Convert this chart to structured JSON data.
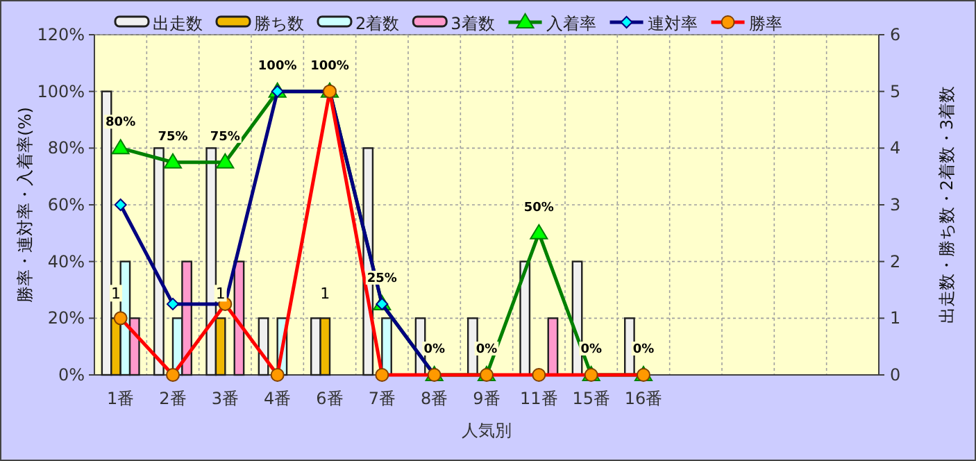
{
  "chart_data": {
    "type": "bar",
    "xlabel": "人気別",
    "ylabel": "勝率・連対率・入着率(%)",
    "y2label": "出走数・勝ち数・2着数・3着数",
    "categories": [
      "1番",
      "2番",
      "3番",
      "4番",
      "6番",
      "7番",
      "8番",
      "9番",
      "11番",
      "15番",
      "16番",
      null,
      null,
      null,
      null
    ],
    "series": [
      {
        "name": "出走数",
        "axis": "y2",
        "color": "#f0f0f0",
        "values": [
          5,
          4,
          4,
          1,
          1,
          4,
          1,
          1,
          2,
          2,
          1,
          null,
          null,
          null,
          null
        ]
      },
      {
        "name": "勝ち数",
        "axis": "y2",
        "color": "#f0b800",
        "values": [
          1,
          0,
          1,
          0,
          1,
          0,
          0,
          0,
          0,
          0,
          0,
          null,
          null,
          null,
          null
        ],
        "value_labels": [
          "1",
          null,
          "1",
          null,
          "1",
          null,
          null,
          null,
          null,
          null,
          null,
          null,
          null,
          null,
          null
        ]
      },
      {
        "name": "2着数",
        "axis": "y2",
        "color": "#ccffff",
        "values": [
          2,
          1,
          0,
          1,
          0,
          1,
          0,
          0,
          0,
          0,
          0,
          null,
          null,
          null,
          null
        ]
      },
      {
        "name": "3着数",
        "axis": "y2",
        "color": "#ff99cc",
        "values": [
          1,
          2,
          2,
          0,
          0,
          0,
          0,
          0,
          1,
          0,
          0,
          null,
          null,
          null,
          null
        ]
      },
      {
        "name": "入着率",
        "type": "line",
        "axis": "y",
        "color": "#008000",
        "marker": "triangle",
        "values": [
          80,
          75,
          75,
          100,
          100,
          25,
          0,
          0,
          50,
          0,
          0,
          null,
          null,
          null,
          null
        ],
        "value_labels": [
          "80%",
          "75%",
          "75%",
          "100%",
          "100%",
          "25%",
          "0%",
          "0%",
          "50%",
          "0%",
          "0%",
          null,
          null,
          null,
          null
        ]
      },
      {
        "name": "連対率",
        "type": "line",
        "axis": "y",
        "color": "#000080",
        "marker": "diamond",
        "values": [
          60,
          25,
          25,
          100,
          100,
          25,
          0,
          null,
          null,
          null,
          null,
          null,
          null,
          null,
          null
        ]
      },
      {
        "name": "勝率",
        "type": "line",
        "axis": "y",
        "color": "#ff0000",
        "marker": "circle",
        "values": [
          20,
          0,
          25,
          0,
          100,
          0,
          0,
          0,
          0,
          0,
          0,
          null,
          null,
          null,
          null
        ]
      }
    ],
    "ylim": [
      0,
      120
    ],
    "yticks": [
      {
        "value": 0,
        "label": "0%"
      },
      {
        "value": 20,
        "label": "20%"
      },
      {
        "value": 40,
        "label": "40%"
      },
      {
        "value": 60,
        "label": "60%"
      },
      {
        "value": 80,
        "label": "80%"
      },
      {
        "value": 100,
        "label": "100%"
      },
      {
        "value": 120,
        "label": "120%"
      }
    ],
    "y2lim": [
      0,
      6
    ],
    "y2ticks": [
      0,
      1,
      2,
      3,
      4,
      5,
      6
    ],
    "grid": true,
    "legend": "top"
  }
}
